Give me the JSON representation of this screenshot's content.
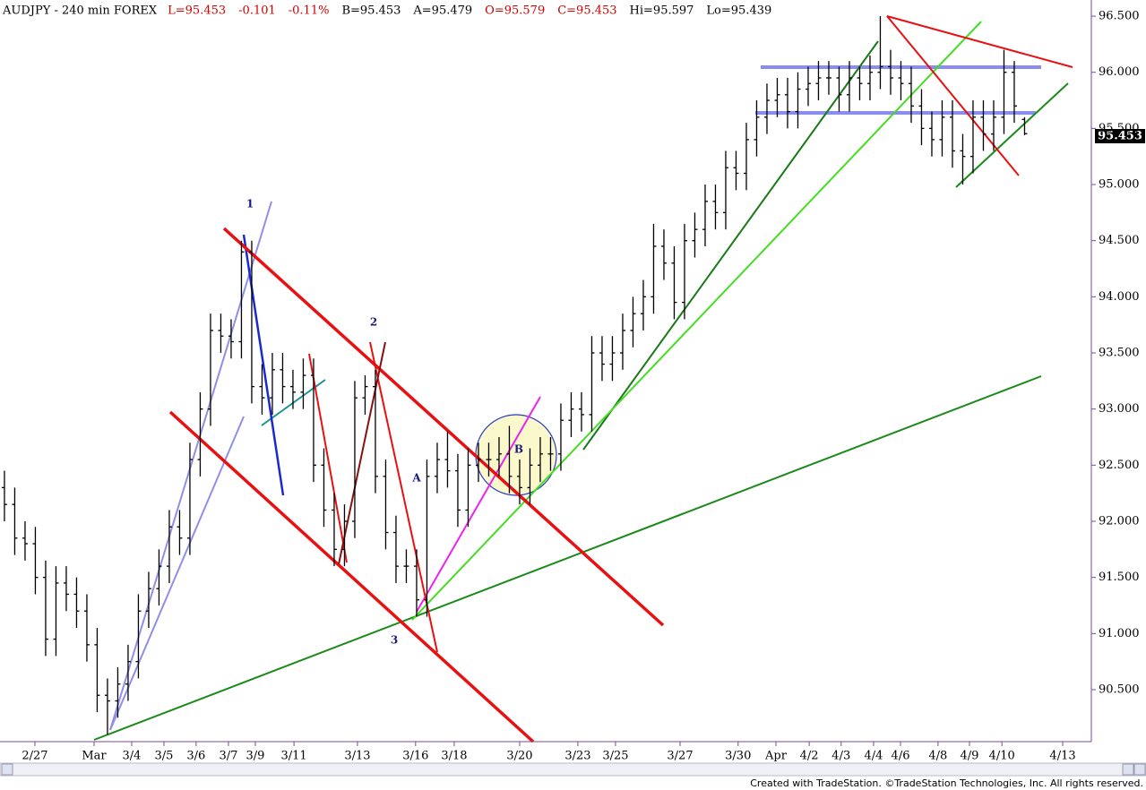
{
  "chart_data": {
    "type": "ohlc",
    "symbol": "AUDJPY - 240 min  FOREX",
    "header": [
      {
        "text": "L=95.453",
        "color": "#d00000"
      },
      {
        "text": "-0.101",
        "color": "#d00000"
      },
      {
        "text": "-0.11%",
        "color": "#d00000"
      },
      {
        "text": "B=95.453",
        "color": "#000000"
      },
      {
        "text": "A=95.479",
        "color": "#000000"
      },
      {
        "text": "O=95.579",
        "color": "#d00000"
      },
      {
        "text": "C=95.453",
        "color": "#d00000"
      },
      {
        "text": "Hi=95.597",
        "color": "#000000"
      },
      {
        "text": "Lo=95.439",
        "color": "#000000"
      }
    ],
    "last_price_label": "95.453",
    "annotations": [
      "1",
      "2",
      "3",
      "A",
      "B"
    ],
    "footer": "Created with TradeStation. ©TradeStation Technologies, Inc. All rights reserved.",
    "color": "#000000",
    "open": [
      92.3,
      92.15,
      91.85,
      91.8,
      91.5,
      90.95,
      91.45,
      91.35,
      91.2,
      90.9,
      90.45,
      90.4,
      90.55,
      90.75,
      91.2,
      91.4,
      91.6,
      91.95,
      91.85,
      92.55,
      93.0,
      93.7,
      93.65,
      93.6,
      94.4,
      93.2,
      93.1,
      93.35,
      93.2,
      93.15,
      93.3,
      92.5,
      92.1,
      91.75,
      92.0,
      93.1,
      93.2,
      92.4,
      91.9,
      91.6,
      91.6,
      91.3,
      92.4,
      92.55,
      92.45,
      92.1,
      92.5,
      92.55,
      92.55,
      92.6,
      92.4,
      92.3,
      92.5,
      92.6,
      92.6,
      92.9,
      93.0,
      92.95,
      93.5,
      93.4,
      93.5,
      93.7,
      93.85,
      94.0,
      94.45,
      94.3,
      93.95,
      94.5,
      94.6,
      94.85,
      94.75,
      95.15,
      95.1,
      95.4,
      95.6,
      95.75,
      95.8,
      95.65,
      95.85,
      95.9,
      95.95,
      95.95,
      95.8,
      95.95,
      95.9,
      96.0,
      96.05,
      95.95,
      95.9,
      95.7,
      95.5,
      95.4,
      95.6,
      95.3,
      95.25,
      95.6,
      95.45,
      95.6,
      96.0,
      95.58
    ],
    "high": [
      92.45,
      92.3,
      92.0,
      91.95,
      91.65,
      91.6,
      91.6,
      91.5,
      91.35,
      91.05,
      90.6,
      90.7,
      90.9,
      91.35,
      91.55,
      91.75,
      92.1,
      92.1,
      92.7,
      93.15,
      93.85,
      93.85,
      93.8,
      94.5,
      94.5,
      93.4,
      93.5,
      93.5,
      93.35,
      93.45,
      93.45,
      92.65,
      92.25,
      92.15,
      93.25,
      93.3,
      93.35,
      92.55,
      92.05,
      91.75,
      91.75,
      92.55,
      92.7,
      92.8,
      92.6,
      92.65,
      92.7,
      92.7,
      92.75,
      92.85,
      92.55,
      92.65,
      92.75,
      92.75,
      93.05,
      93.15,
      93.15,
      93.65,
      93.65,
      93.65,
      93.85,
      94.0,
      94.15,
      94.65,
      94.6,
      94.45,
      94.65,
      94.75,
      95.0,
      95.0,
      95.3,
      95.3,
      95.55,
      95.75,
      95.9,
      95.95,
      95.95,
      96.0,
      96.05,
      96.1,
      96.1,
      96.05,
      96.1,
      96.05,
      96.15,
      96.5,
      96.2,
      96.1,
      96.05,
      95.85,
      95.65,
      95.75,
      95.75,
      95.45,
      95.75,
      95.75,
      95.75,
      96.2,
      96.1,
      95.6
    ],
    "low": [
      92.0,
      91.7,
      91.65,
      91.35,
      90.8,
      90.8,
      91.2,
      91.05,
      90.75,
      90.3,
      90.1,
      90.25,
      90.4,
      90.6,
      91.05,
      91.25,
      91.45,
      91.7,
      91.7,
      92.4,
      92.85,
      93.5,
      93.45,
      93.45,
      93.05,
      92.95,
      92.95,
      93.05,
      93.0,
      93.0,
      92.35,
      91.95,
      91.6,
      91.6,
      91.85,
      92.95,
      92.25,
      91.75,
      91.45,
      91.45,
      91.15,
      91.15,
      92.25,
      92.3,
      91.95,
      91.95,
      92.35,
      92.4,
      92.4,
      92.25,
      92.15,
      92.15,
      92.35,
      92.45,
      92.45,
      92.75,
      92.8,
      92.8,
      93.25,
      93.25,
      93.35,
      93.55,
      93.7,
      93.85,
      94.15,
      93.8,
      93.8,
      94.35,
      94.45,
      94.6,
      94.6,
      94.95,
      94.95,
      95.25,
      95.45,
      95.6,
      95.5,
      95.5,
      95.7,
      95.75,
      95.8,
      95.65,
      95.65,
      95.75,
      95.75,
      95.85,
      95.8,
      95.75,
      95.55,
      95.35,
      95.25,
      95.25,
      95.15,
      95.0,
      95.1,
      95.3,
      95.3,
      95.45,
      95.55,
      95.44
    ],
    "close": [
      92.15,
      91.85,
      91.8,
      91.5,
      90.95,
      91.45,
      91.35,
      91.2,
      90.9,
      90.45,
      90.4,
      90.55,
      90.75,
      91.2,
      91.4,
      91.6,
      91.95,
      91.85,
      92.55,
      93.0,
      93.7,
      93.65,
      93.6,
      94.4,
      93.2,
      93.1,
      93.35,
      93.2,
      93.15,
      93.3,
      92.5,
      92.1,
      91.75,
      92.0,
      93.1,
      93.2,
      92.4,
      91.9,
      91.6,
      91.6,
      91.3,
      92.4,
      92.55,
      92.45,
      92.1,
      92.5,
      92.55,
      92.55,
      92.6,
      92.4,
      92.3,
      92.5,
      92.6,
      92.6,
      92.9,
      93.0,
      92.95,
      93.5,
      93.4,
      93.5,
      93.7,
      93.85,
      94.0,
      94.45,
      94.3,
      93.95,
      94.5,
      94.6,
      94.85,
      94.75,
      95.15,
      95.1,
      95.4,
      95.6,
      95.75,
      95.8,
      95.65,
      95.85,
      95.9,
      95.95,
      95.95,
      95.8,
      95.95,
      95.9,
      96.0,
      96.05,
      95.95,
      95.9,
      95.7,
      95.5,
      95.4,
      95.6,
      95.3,
      95.25,
      95.6,
      95.45,
      95.6,
      96.0,
      95.7,
      95.453
    ],
    "xlim": [
      -0.43,
      105.48
    ],
    "xticks": [
      {
        "value": 2.96,
        "label": "2/27"
      },
      {
        "value": 8.7,
        "label": "Mar"
      },
      {
        "value": 12.35,
        "label": "3/4"
      },
      {
        "value": 15.48,
        "label": "3/5"
      },
      {
        "value": 18.6,
        "label": "3/6"
      },
      {
        "value": 21.74,
        "label": "3/7"
      },
      {
        "value": 24.35,
        "label": "3/9"
      },
      {
        "value": 28.1,
        "label": "3/11"
      },
      {
        "value": 34.26,
        "label": "3/13"
      },
      {
        "value": 39.9,
        "label": "3/16"
      },
      {
        "value": 43.65,
        "label": "3/18"
      },
      {
        "value": 50,
        "label": "3/20"
      },
      {
        "value": 55.65,
        "label": "3/23"
      },
      {
        "value": 59.3,
        "label": "3/25"
      },
      {
        "value": 65.57,
        "label": "3/27"
      },
      {
        "value": 71.2,
        "label": "3/30"
      },
      {
        "value": 74.87,
        "label": "Apr"
      },
      {
        "value": 78.1,
        "label": "4/2"
      },
      {
        "value": 81.2,
        "label": "4/3"
      },
      {
        "value": 84.35,
        "label": "4/4"
      },
      {
        "value": 86.96,
        "label": "4/6"
      },
      {
        "value": 90.6,
        "label": "4/8"
      },
      {
        "value": 93.65,
        "label": "4/9"
      },
      {
        "value": 96.8,
        "label": "4/10"
      },
      {
        "value": 102.7,
        "label": "4/13"
      }
    ],
    "ylim": [
      90.037,
      96.644
    ],
    "yticks": [
      {
        "value": 90.5,
        "label": "90.500"
      },
      {
        "value": 91,
        "label": "91.000"
      },
      {
        "value": 91.5,
        "label": "91.500"
      },
      {
        "value": 92,
        "label": "92.000"
      },
      {
        "value": 92.5,
        "label": "92.500"
      },
      {
        "value": 93,
        "label": "93.000"
      },
      {
        "value": 93.5,
        "label": "93.500"
      },
      {
        "value": 94,
        "label": "94.000"
      },
      {
        "value": 94.5,
        "label": "94.500"
      },
      {
        "value": 95,
        "label": "95.000"
      },
      {
        "value": 95.5,
        "label": "95.500"
      },
      {
        "value": 96,
        "label": "96.000"
      },
      {
        "value": 96.5,
        "label": "96.500"
      }
    ]
  }
}
